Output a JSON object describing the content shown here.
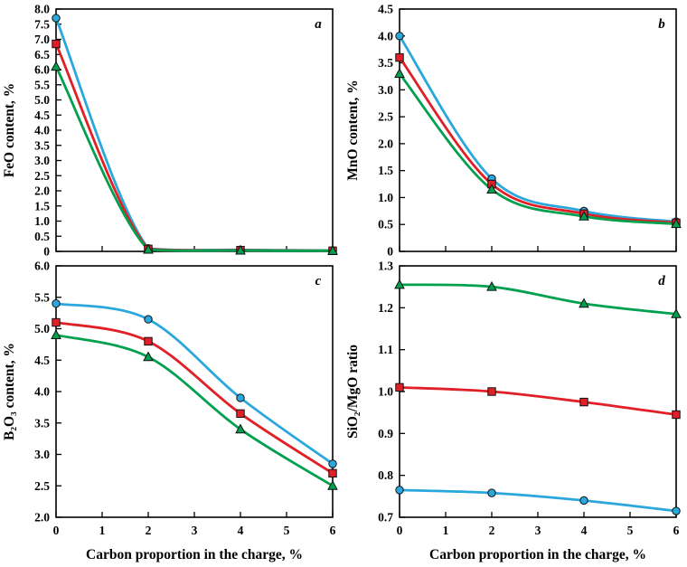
{
  "figure": {
    "background": "#ffffff",
    "axis_color": "#000000",
    "marker_edge_color": "#111111",
    "x_axis_title": "Carbon proportion in the charge, %"
  },
  "chart_data": [
    {
      "id": "a",
      "type": "line",
      "panel_label": "a",
      "ylabel": "FeO content, %",
      "xlabel": "",
      "show_x_tick_labels": false,
      "x": [
        0,
        2,
        4,
        6
      ],
      "xticks": [
        0,
        1,
        2,
        3,
        4,
        5,
        6
      ],
      "xlim": [
        0,
        6
      ],
      "ylim": [
        0,
        8.0
      ],
      "ytick_step": 0.5,
      "ytick_decimals": 1,
      "grid": false,
      "legend": "none",
      "series": [
        {
          "name": "blue-circle",
          "marker": "circle",
          "color": "#2aa7dc",
          "values": [
            7.7,
            0.1,
            0.05,
            0.03
          ]
        },
        {
          "name": "red-square",
          "marker": "square",
          "color": "#e01f26",
          "values": [
            6.85,
            0.08,
            0.04,
            0.02
          ]
        },
        {
          "name": "green-triangle",
          "marker": "triangle",
          "color": "#00a04f",
          "values": [
            6.1,
            0.06,
            0.03,
            0.02
          ]
        }
      ]
    },
    {
      "id": "b",
      "type": "line",
      "panel_label": "b",
      "ylabel": "MnO content, %",
      "xlabel": "",
      "show_x_tick_labels": false,
      "x": [
        0,
        2,
        4,
        6
      ],
      "xticks": [
        0,
        1,
        2,
        3,
        4,
        5,
        6
      ],
      "xlim": [
        0,
        6
      ],
      "ylim": [
        0,
        4.5
      ],
      "ytick_step": 0.5,
      "ytick_decimals": 1,
      "grid": false,
      "legend": "none",
      "series": [
        {
          "name": "blue-circle",
          "marker": "circle",
          "color": "#2aa7dc",
          "values": [
            4.0,
            1.35,
            0.75,
            0.55
          ]
        },
        {
          "name": "red-square",
          "marker": "square",
          "color": "#e01f26",
          "values": [
            3.6,
            1.25,
            0.7,
            0.53
          ]
        },
        {
          "name": "green-triangle",
          "marker": "triangle",
          "color": "#00a04f",
          "values": [
            3.3,
            1.15,
            0.65,
            0.51
          ]
        }
      ]
    },
    {
      "id": "c",
      "type": "line",
      "panel_label": "c",
      "ylabel": "B₂O₃ content, %",
      "xlabel": "Carbon proportion in the charge, %",
      "show_x_tick_labels": true,
      "x": [
        0,
        2,
        4,
        6
      ],
      "xticks": [
        0,
        1,
        2,
        3,
        4,
        5,
        6
      ],
      "xlim": [
        0,
        6
      ],
      "ylim": [
        2.0,
        6.0
      ],
      "ytick_step": 0.5,
      "ytick_decimals": 1,
      "grid": false,
      "legend": "none",
      "series": [
        {
          "name": "blue-circle",
          "marker": "circle",
          "color": "#2aa7dc",
          "values": [
            5.4,
            5.15,
            3.9,
            2.85
          ]
        },
        {
          "name": "red-square",
          "marker": "square",
          "color": "#e01f26",
          "values": [
            5.1,
            4.8,
            3.65,
            2.7
          ]
        },
        {
          "name": "green-triangle",
          "marker": "triangle",
          "color": "#00a04f",
          "values": [
            4.9,
            4.55,
            3.4,
            2.5
          ]
        }
      ]
    },
    {
      "id": "d",
      "type": "line",
      "panel_label": "d",
      "ylabel": "SiO₂/MgO ratio",
      "xlabel": "Carbon proportion in the charge, %",
      "show_x_tick_labels": true,
      "x": [
        0,
        2,
        4,
        6
      ],
      "xticks": [
        0,
        1,
        2,
        3,
        4,
        5,
        6
      ],
      "xlim": [
        0,
        6
      ],
      "ylim": [
        0.7,
        1.3
      ],
      "ytick_step": 0.1,
      "ytick_decimals": 1,
      "grid": false,
      "legend": "none",
      "series": [
        {
          "name": "blue-circle",
          "marker": "circle",
          "color": "#2aa7dc",
          "values": [
            0.765,
            0.758,
            0.74,
            0.715
          ]
        },
        {
          "name": "red-square",
          "marker": "square",
          "color": "#e01f26",
          "values": [
            1.01,
            1.0,
            0.975,
            0.945
          ]
        },
        {
          "name": "green-triangle",
          "marker": "triangle",
          "color": "#00a04f",
          "values": [
            1.255,
            1.25,
            1.21,
            1.185
          ]
        }
      ]
    }
  ]
}
